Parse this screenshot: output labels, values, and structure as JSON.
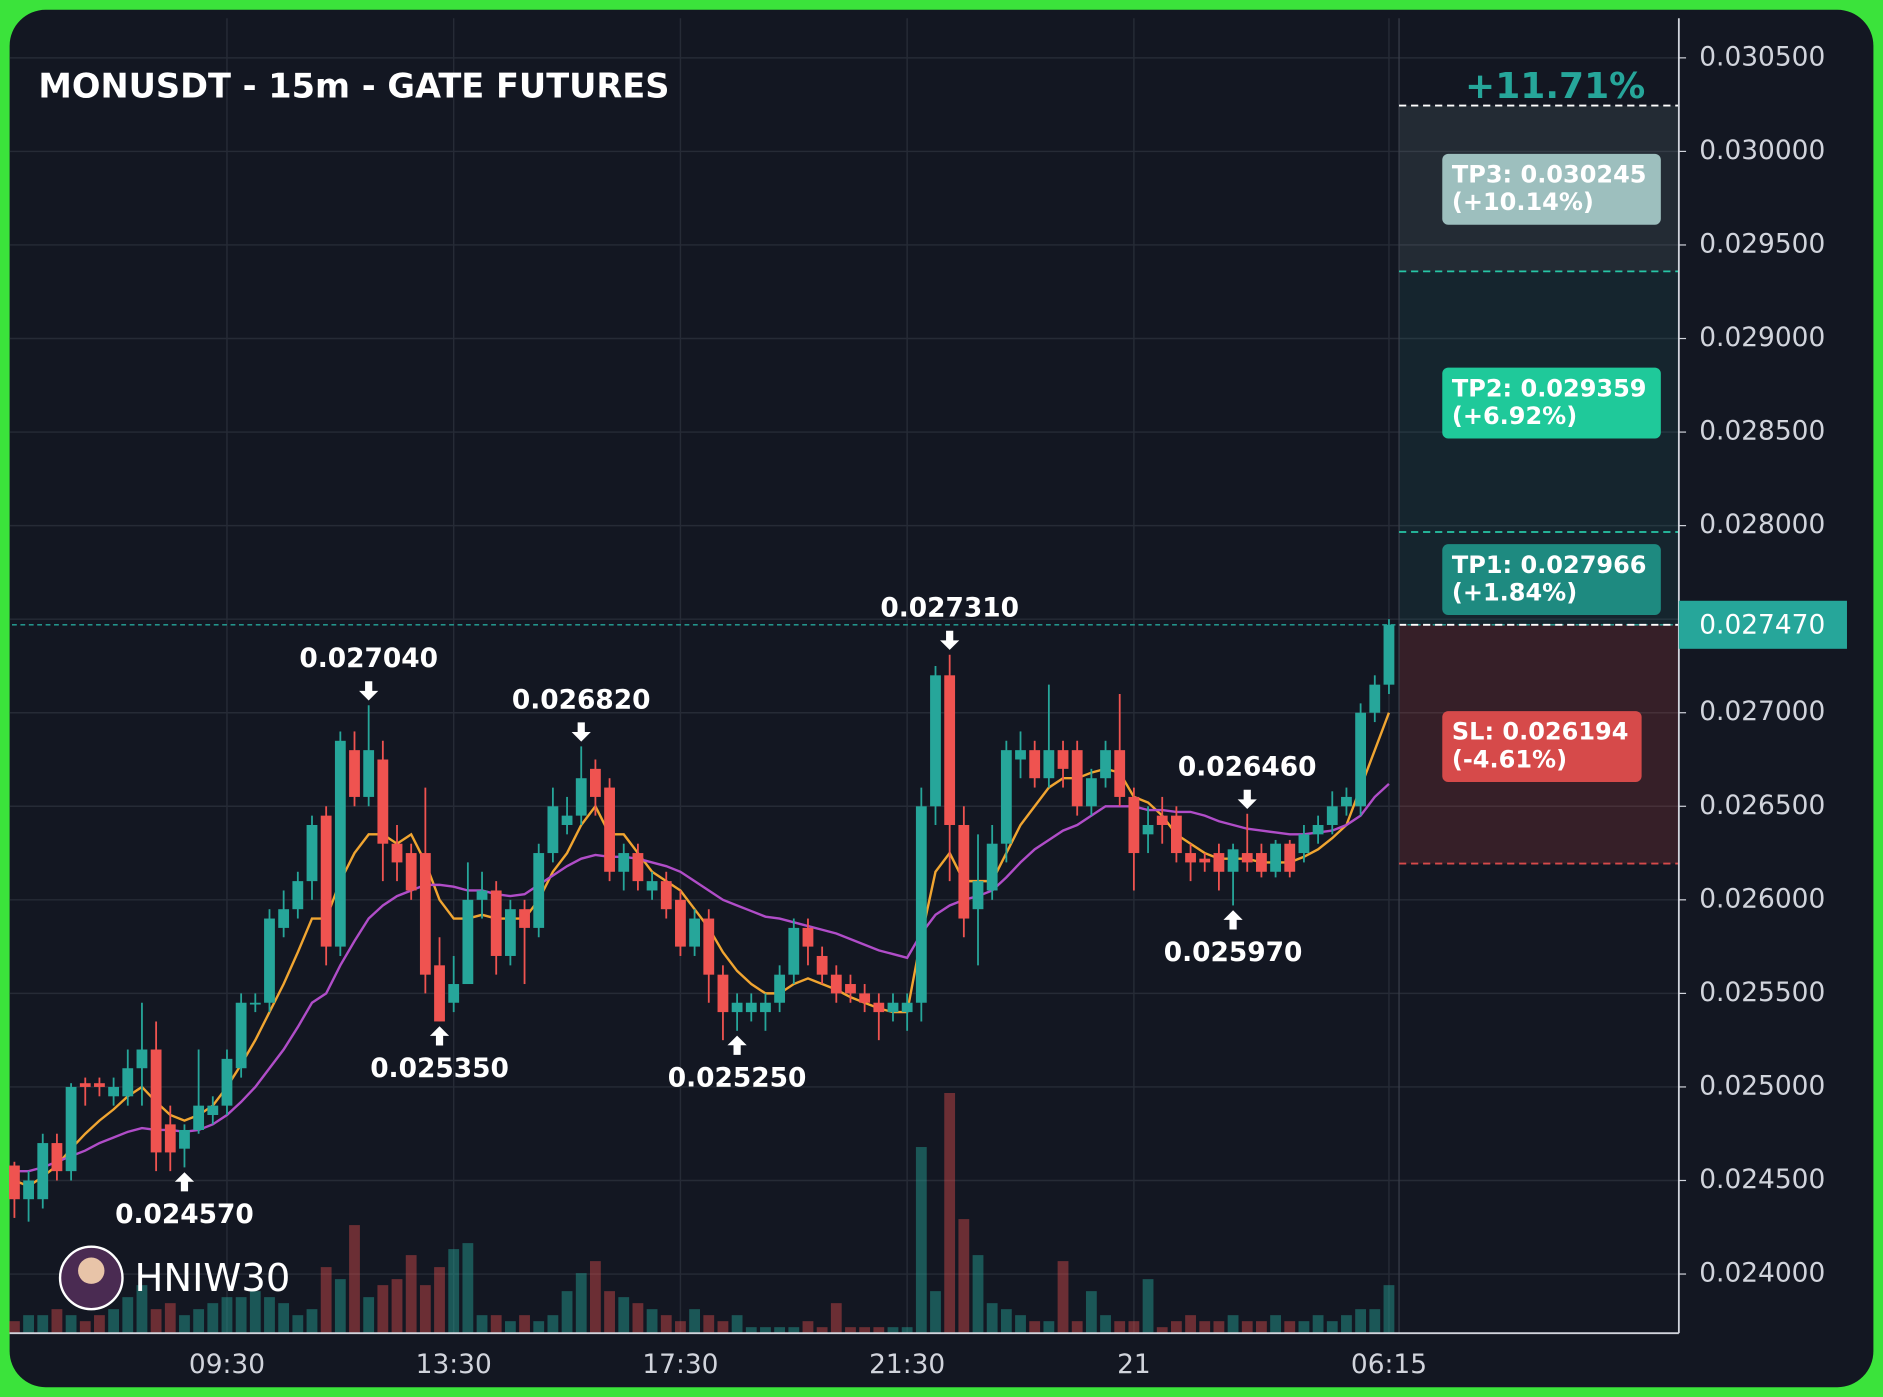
{
  "chart_data": {
    "type": "candlestick",
    "title": "MONUSDT - 15m - GATE FUTURES",
    "watermark": "HNIW30",
    "up_color": "#26a69a",
    "down_color": "#ef5350",
    "grid": true,
    "categories": [
      null,
      null,
      null,
      null,
      null,
      null,
      null,
      null,
      null,
      null,
      null,
      null,
      null,
      null,
      null,
      "09:30",
      null,
      null,
      null,
      null,
      null,
      null,
      null,
      null,
      null,
      null,
      null,
      null,
      null,
      null,
      null,
      "13:30",
      null,
      null,
      null,
      null,
      null,
      null,
      null,
      null,
      null,
      null,
      null,
      null,
      null,
      null,
      null,
      "17:30",
      null,
      null,
      null,
      null,
      null,
      null,
      null,
      null,
      null,
      null,
      null,
      null,
      null,
      null,
      null,
      "21:30",
      null,
      null,
      null,
      null,
      null,
      null,
      null,
      null,
      null,
      null,
      null,
      null,
      null,
      null,
      null,
      "21",
      null,
      null,
      null,
      null,
      null,
      null,
      null,
      null,
      null,
      null,
      null,
      null,
      null,
      null,
      null,
      null,
      null,
      "06:15"
    ],
    "open": [
      0.02458,
      0.0244,
      0.0244,
      0.0247,
      0.02455,
      0.02502,
      0.02502,
      0.02495,
      0.02495,
      0.0251,
      0.0252,
      0.0248,
      0.02467,
      0.02477,
      0.02485,
      0.0249,
      0.0251,
      0.02545,
      0.02545,
      0.02585,
      0.02595,
      0.0261,
      0.02645,
      0.02575,
      0.0268,
      0.02655,
      0.02675,
      0.0263,
      0.02625,
      0.02625,
      0.02565,
      0.02545,
      0.02555,
      0.026,
      0.02605,
      0.0257,
      0.02595,
      0.02585,
      0.02625,
      0.0264,
      0.02645,
      0.0267,
      0.0266,
      0.02615,
      0.02625,
      0.02605,
      0.0261,
      0.026,
      0.02575,
      0.0259,
      0.0256,
      0.0254,
      0.0254,
      0.0254,
      0.02545,
      0.0256,
      0.02585,
      0.0257,
      0.0256,
      0.02555,
      0.0255,
      0.02545,
      0.0254,
      0.0254,
      0.02545,
      0.0265,
      0.0272,
      0.0264,
      0.02595,
      0.02605,
      0.0263,
      0.02675,
      0.0268,
      0.02665,
      0.0268,
      0.0268,
      0.0265,
      0.02665,
      0.0268,
      0.02655,
      0.02635,
      0.02645,
      0.02645,
      0.02625,
      0.02622,
      0.02625,
      0.02615,
      0.02625,
      0.02625,
      0.02615,
      0.0263,
      0.02625,
      0.02635,
      0.0264,
      0.0265,
      0.0265,
      0.027,
      0.02715
    ],
    "high": [
      0.0246,
      0.02455,
      0.02475,
      0.02475,
      0.02502,
      0.02505,
      0.02505,
      0.02505,
      0.0252,
      0.02545,
      0.02535,
      0.0249,
      0.0248,
      0.0252,
      0.02495,
      0.0252,
      0.0255,
      0.0255,
      0.02595,
      0.02605,
      0.02615,
      0.02645,
      0.0265,
      0.0269,
      0.0269,
      0.02704,
      0.02685,
      0.0264,
      0.0263,
      0.0266,
      0.0258,
      0.0257,
      0.0262,
      0.02615,
      0.0261,
      0.026,
      0.026,
      0.0263,
      0.0266,
      0.02655,
      0.02682,
      0.02675,
      0.02665,
      0.0263,
      0.0263,
      0.02615,
      0.02615,
      0.02605,
      0.02595,
      0.02595,
      0.02565,
      0.0255,
      0.0255,
      0.0255,
      0.02565,
      0.0259,
      0.0259,
      0.02575,
      0.02565,
      0.0256,
      0.02555,
      0.0255,
      0.0255,
      0.0255,
      0.0266,
      0.02725,
      0.02731,
      0.0265,
      0.02635,
      0.0264,
      0.02685,
      0.0269,
      0.02685,
      0.02715,
      0.02685,
      0.02685,
      0.0267,
      0.02685,
      0.0271,
      0.0266,
      0.0265,
      0.02655,
      0.0265,
      0.0263,
      0.02625,
      0.0263,
      0.0263,
      0.02646,
      0.0263,
      0.02632,
      0.02632,
      0.0264,
      0.02645,
      0.02658,
      0.0266,
      0.02705,
      0.0272,
      0.0275
    ],
    "low": [
      0.0243,
      0.02428,
      0.02435,
      0.0245,
      0.0245,
      0.0249,
      0.02495,
      0.0249,
      0.0249,
      0.0249,
      0.02455,
      0.02455,
      0.02457,
      0.02475,
      0.0248,
      0.02485,
      0.02505,
      0.0254,
      0.0254,
      0.0258,
      0.0259,
      0.026,
      0.02565,
      0.0257,
      0.0265,
      0.0265,
      0.0261,
      0.0261,
      0.026,
      0.0255,
      0.02535,
      0.0254,
      0.02555,
      0.0259,
      0.0256,
      0.02565,
      0.02555,
      0.0258,
      0.0262,
      0.02635,
      0.0264,
      0.02645,
      0.0261,
      0.02605,
      0.02605,
      0.026,
      0.0259,
      0.0257,
      0.0257,
      0.02545,
      0.02525,
      0.0253,
      0.02535,
      0.0253,
      0.0254,
      0.02555,
      0.02565,
      0.02555,
      0.02545,
      0.02545,
      0.0254,
      0.02525,
      0.02535,
      0.0253,
      0.02535,
      0.0264,
      0.0261,
      0.0258,
      0.02565,
      0.026,
      0.0262,
      0.02665,
      0.0266,
      0.0266,
      0.0266,
      0.02645,
      0.02645,
      0.0266,
      0.0265,
      0.02605,
      0.02625,
      0.0263,
      0.0262,
      0.0261,
      0.02615,
      0.02605,
      0.02597,
      0.02615,
      0.02612,
      0.02612,
      0.02612,
      0.0262,
      0.0263,
      0.02635,
      0.02645,
      0.02645,
      0.02695,
      0.0271
    ],
    "close": [
      0.0244,
      0.0245,
      0.0247,
      0.02455,
      0.025,
      0.025,
      0.025,
      0.025,
      0.0251,
      0.0252,
      0.02465,
      0.02465,
      0.02477,
      0.0249,
      0.0249,
      0.02515,
      0.02545,
      0.02545,
      0.0259,
      0.02595,
      0.0261,
      0.0264,
      0.02575,
      0.02685,
      0.02655,
      0.0268,
      0.0263,
      0.0262,
      0.02605,
      0.0256,
      0.02535,
      0.02555,
      0.026,
      0.02605,
      0.0257,
      0.02595,
      0.02585,
      0.02625,
      0.0265,
      0.02645,
      0.02665,
      0.02655,
      0.02615,
      0.02625,
      0.0261,
      0.0261,
      0.02595,
      0.02575,
      0.0259,
      0.0256,
      0.0254,
      0.02545,
      0.02545,
      0.02545,
      0.0256,
      0.02585,
      0.02575,
      0.0256,
      0.0255,
      0.0255,
      0.02545,
      0.0254,
      0.02545,
      0.02545,
      0.0265,
      0.0272,
      0.0264,
      0.0259,
      0.0261,
      0.0263,
      0.0268,
      0.0268,
      0.02665,
      0.0268,
      0.0267,
      0.0265,
      0.02665,
      0.0268,
      0.02655,
      0.02625,
      0.0264,
      0.0264,
      0.02625,
      0.0262,
      0.0262,
      0.02615,
      0.02627,
      0.0262,
      0.02615,
      0.0263,
      0.02615,
      0.02635,
      0.0264,
      0.0265,
      0.02655,
      0.027,
      0.02715,
      0.02747
    ],
    "high_labels": [
      null,
      null,
      null,
      null,
      null,
      null,
      null,
      null,
      null,
      null,
      null,
      null,
      null,
      null,
      null,
      null,
      null,
      null,
      null,
      null,
      null,
      null,
      null,
      null,
      null,
      "0.027040",
      null,
      null,
      null,
      null,
      null,
      null,
      null,
      null,
      null,
      null,
      null,
      null,
      null,
      null,
      "0.026820",
      null,
      null,
      null,
      null,
      null,
      null,
      null,
      null,
      null,
      null,
      null,
      null,
      null,
      null,
      null,
      null,
      null,
      null,
      null,
      null,
      null,
      null,
      null,
      null,
      null,
      "0.027310",
      null,
      null,
      null,
      null,
      null,
      null,
      null,
      null,
      null,
      null,
      null,
      null,
      null,
      null,
      null,
      null,
      null,
      null,
      null,
      null,
      "0.026460",
      null,
      null,
      null,
      null,
      null,
      null,
      null,
      null,
      null,
      null
    ],
    "low_labels": [
      null,
      null,
      null,
      null,
      null,
      null,
      null,
      null,
      null,
      null,
      null,
      null,
      "0.024570",
      null,
      null,
      null,
      null,
      null,
      null,
      null,
      null,
      null,
      null,
      null,
      null,
      null,
      null,
      null,
      null,
      null,
      "0.025350",
      null,
      null,
      null,
      null,
      null,
      null,
      null,
      null,
      null,
      null,
      null,
      null,
      null,
      null,
      null,
      null,
      null,
      null,
      null,
      null,
      "0.025250",
      null,
      null,
      null,
      null,
      null,
      null,
      null,
      null,
      null,
      null,
      null,
      null,
      null,
      null,
      null,
      null,
      null,
      null,
      null,
      null,
      null,
      null,
      null,
      null,
      null,
      null,
      null,
      null,
      null,
      null,
      null,
      null,
      null,
      null,
      "0.025970",
      null,
      null,
      null,
      null,
      null,
      null,
      null,
      null,
      null,
      null,
      null
    ],
    "volume": [
      10,
      15,
      15,
      20,
      15,
      10,
      15,
      20,
      30,
      40,
      20,
      25,
      15,
      20,
      25,
      30,
      30,
      35,
      30,
      25,
      15,
      20,
      55,
      45,
      90,
      30,
      40,
      45,
      65,
      40,
      55,
      70,
      75,
      15,
      15,
      10,
      15,
      10,
      15,
      35,
      50,
      60,
      35,
      30,
      25,
      20,
      15,
      10,
      20,
      15,
      10,
      15,
      5,
      5,
      5,
      5,
      10,
      5,
      25,
      5,
      5,
      5,
      5,
      5,
      155,
      35,
      200,
      95,
      65,
      25,
      20,
      15,
      10,
      10,
      60,
      10,
      35,
      15,
      10,
      10,
      45,
      5,
      10,
      15,
      10,
      10,
      15,
      10,
      10,
      15,
      10,
      10,
      15,
      10,
      15,
      20,
      20,
      40
    ],
    "moving_averages": [
      {
        "color": "#f0a531",
        "values": [
          0.0245,
          0.02447,
          0.02452,
          0.02458,
          0.02467,
          0.02475,
          0.02482,
          0.02488,
          0.02495,
          0.025,
          0.02492,
          0.02485,
          0.02482,
          0.02485,
          0.0249,
          0.025,
          0.02512,
          0.02525,
          0.0254,
          0.02555,
          0.02572,
          0.0259,
          0.0259,
          0.0261,
          0.02625,
          0.02635,
          0.02635,
          0.0263,
          0.02635,
          0.0262,
          0.026,
          0.0259,
          0.0259,
          0.02592,
          0.0259,
          0.0259,
          0.0259,
          0.026,
          0.02615,
          0.02625,
          0.0264,
          0.0265,
          0.02635,
          0.02635,
          0.02625,
          0.02615,
          0.0261,
          0.02605,
          0.02595,
          0.02585,
          0.02572,
          0.02562,
          0.02555,
          0.0255,
          0.0255,
          0.02555,
          0.02558,
          0.02555,
          0.02552,
          0.02548,
          0.02545,
          0.02542,
          0.0254,
          0.0254,
          0.0258,
          0.02615,
          0.02625,
          0.0261,
          0.0261,
          0.0261,
          0.02625,
          0.0264,
          0.0265,
          0.0266,
          0.02665,
          0.02665,
          0.02668,
          0.0267,
          0.02668,
          0.02655,
          0.02652,
          0.02645,
          0.02635,
          0.0263,
          0.02625,
          0.02622,
          0.02622,
          0.02622,
          0.0262,
          0.0262,
          0.0262,
          0.02623,
          0.02627,
          0.02633,
          0.0264,
          0.0266,
          0.0268,
          0.027
        ]
      },
      {
        "color": "#b04dc8",
        "values": [
          0.02455,
          0.02455,
          0.02457,
          0.0246,
          0.02463,
          0.02466,
          0.0247,
          0.02473,
          0.02476,
          0.02478,
          0.02477,
          0.02477,
          0.02476,
          0.02477,
          0.0248,
          0.02485,
          0.02492,
          0.025,
          0.0251,
          0.0252,
          0.02532,
          0.02545,
          0.0255,
          0.02565,
          0.02578,
          0.0259,
          0.02597,
          0.02602,
          0.02605,
          0.02608,
          0.02608,
          0.02607,
          0.02605,
          0.02605,
          0.02603,
          0.02602,
          0.02603,
          0.02608,
          0.02613,
          0.02618,
          0.02622,
          0.02624,
          0.02623,
          0.02623,
          0.02622,
          0.0262,
          0.02618,
          0.02615,
          0.0261,
          0.02605,
          0.026,
          0.02597,
          0.02594,
          0.02591,
          0.0259,
          0.02588,
          0.02586,
          0.02584,
          0.02582,
          0.02579,
          0.02576,
          0.02573,
          0.02571,
          0.02569,
          0.02582,
          0.02592,
          0.02597,
          0.026,
          0.02602,
          0.02605,
          0.02612,
          0.0262,
          0.02627,
          0.02632,
          0.02637,
          0.0264,
          0.02645,
          0.0265,
          0.0265,
          0.0265,
          0.02648,
          0.02648,
          0.02647,
          0.02647,
          0.02645,
          0.02642,
          0.0264,
          0.02638,
          0.02637,
          0.02636,
          0.02635,
          0.02635,
          0.02636,
          0.02637,
          0.0264,
          0.02645,
          0.02655,
          0.02662
        ]
      }
    ],
    "ylim": [
      0.023684,
      0.030712
    ],
    "yticks": [
      {
        "value": 0.0305,
        "label": "0.030500"
      },
      {
        "value": 0.03,
        "label": "0.030000"
      },
      {
        "value": 0.0295,
        "label": "0.029500"
      },
      {
        "value": 0.029,
        "label": "0.029000"
      },
      {
        "value": 0.0285,
        "label": "0.028500"
      },
      {
        "value": 0.028,
        "label": "0.028000"
      },
      {
        "value": 0.0275,
        "label": "0.027500"
      },
      {
        "value": 0.027,
        "label": "0.027000"
      },
      {
        "value": 0.0265,
        "label": "0.026500"
      },
      {
        "value": 0.026,
        "label": "0.026000"
      },
      {
        "value": 0.0255,
        "label": "0.025500"
      },
      {
        "value": 0.025,
        "label": "0.025000"
      },
      {
        "value": 0.0245,
        "label": "0.024500"
      },
      {
        "value": 0.024,
        "label": "0.024000"
      }
    ],
    "position": {
      "entry": {
        "value": 0.02747,
        "label": "0.027470",
        "color": "#26a69a"
      },
      "total_label": "+11.71%",
      "targets": [
        {
          "value": 0.027966,
          "label": "TP1: 0.027966",
          "change_label": "(+1.84%)",
          "color": "#1e8a80"
        },
        {
          "value": 0.029359,
          "label": "TP2: 0.029359",
          "change_label": "(+6.92%)",
          "color": "#1fc99a"
        },
        {
          "value": 0.030245,
          "label": "TP3: 0.030245",
          "change_label": "(+10.14%)",
          "color": "#9dbfbe"
        }
      ],
      "stop": {
        "value": 0.026194,
        "label": "SL: 0.026194",
        "change_label": "(-4.61%)",
        "color": "#d64a4a"
      }
    }
  }
}
